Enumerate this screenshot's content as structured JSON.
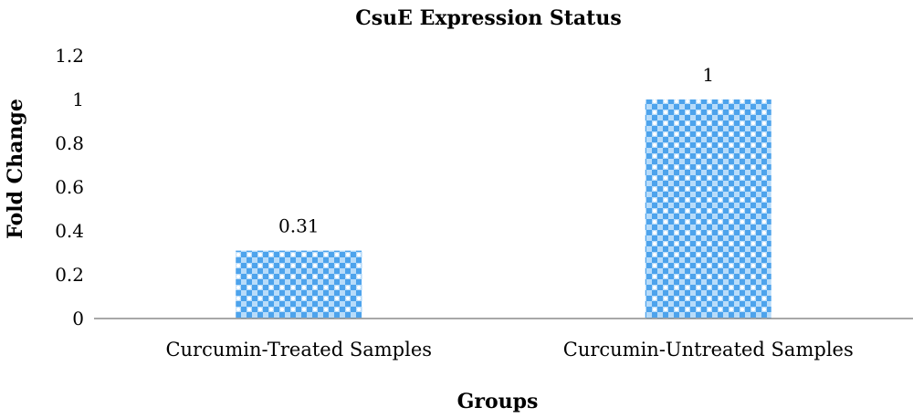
{
  "chart_data": {
    "type": "bar",
    "title": "CsuE Expression Status",
    "xlabel": "Groups",
    "ylabel": "Fold Change",
    "categories": [
      "Curcumin-Treated Samples",
      "Curcumin-Untreated Samples"
    ],
    "values": [
      0.31,
      1
    ],
    "data_labels": [
      "0.31",
      "1"
    ],
    "ylim": [
      0,
      1.2
    ],
    "yticks": [
      0,
      0.2,
      0.4,
      0.6,
      0.8,
      1,
      1.2
    ],
    "ytick_labels": [
      "0",
      "0.2",
      "0.4",
      "0.6",
      "0.8",
      "1",
      "1.2"
    ],
    "grid": false,
    "legend": "none",
    "colors": {
      "bar_light": "#b8dcfa",
      "bar_pattern": "#4da3ec",
      "axis": "#8c8c8c"
    }
  }
}
